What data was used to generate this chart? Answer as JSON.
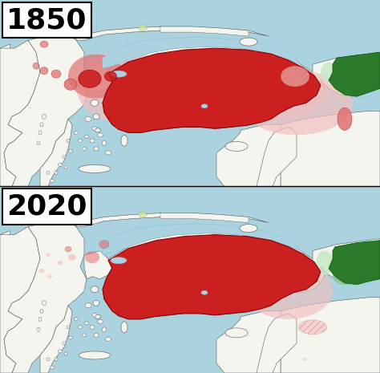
{
  "title_1850": "1850",
  "title_2020": "2020",
  "title_fontsize": 26,
  "title_fontweight": "bold",
  "fig_width": 4.74,
  "fig_height": 4.65,
  "dpi": 100,
  "water_color": "#aad3df",
  "land_color": "#f5f5f0",
  "border_color": "#555555",
  "dark_red": "#cc2020",
  "medium_red": "#e07070",
  "light_red": "#f2bfbf",
  "very_light_red": "#fadadd",
  "dark_green": "#2a7a2a",
  "medium_green": "#7dbb7d",
  "light_green": "#c5e8c5",
  "white": "#ffffff",
  "yellow_green": "#d4e89a",
  "light_blue": "#b8d8ea"
}
